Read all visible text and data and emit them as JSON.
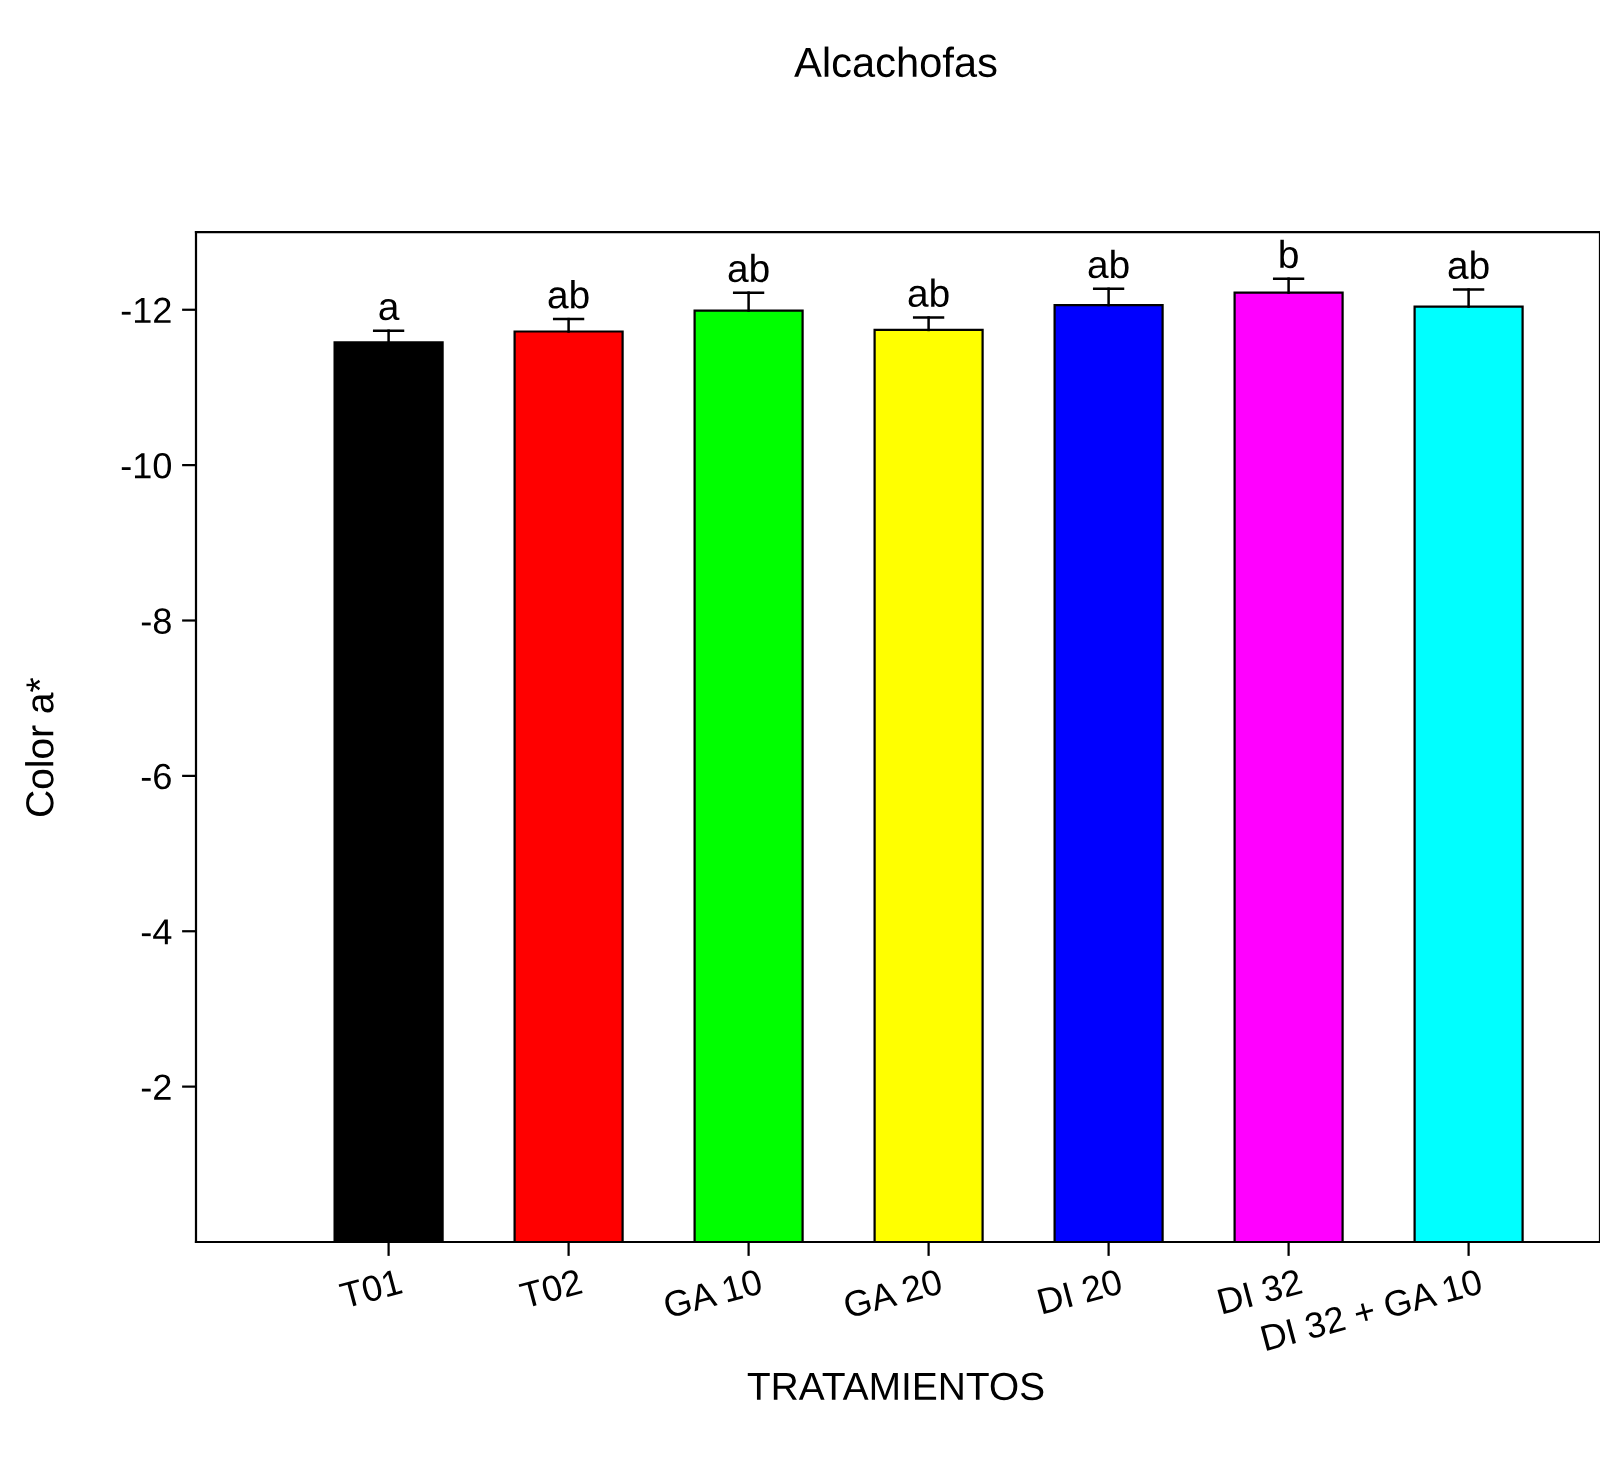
{
  "chart_data": {
    "type": "bar",
    "title": "Alcachofas",
    "xlabel": "TRATAMIENTOS",
    "ylabel": "Color a*",
    "categories": [
      "T01",
      "T02",
      "GA 10",
      "GA 20",
      "DI 20",
      "DI 32",
      "DI 32 + GA 10"
    ],
    "values": [
      -11.58,
      -11.72,
      -11.99,
      -11.74,
      -12.06,
      -12.22,
      -12.04
    ],
    "errors": [
      [
        -11.73,
        -11.58
      ],
      [
        -11.88,
        -11.72
      ],
      [
        -12.22,
        -11.99
      ],
      [
        -11.9,
        -11.74
      ],
      [
        -12.27,
        -12.06
      ],
      [
        -12.4,
        -12.22
      ],
      [
        -12.26,
        -12.04
      ]
    ],
    "colors": [
      "#000000",
      "#ff0000",
      "#00ff00",
      "#ffff00",
      "#0000ff",
      "#ff00ff",
      "#00ffff"
    ],
    "ylim": [
      0,
      -13
    ],
    "yticks": [
      -2,
      -4,
      -6,
      -8,
      -10,
      -12
    ],
    "grid": false,
    "annotations": [
      {
        "text": "a",
        "x": "T01",
        "y": -11.73
      },
      {
        "text": "ab",
        "x": "T02",
        "y": -11.88
      },
      {
        "text": "ab",
        "x": "GA 10",
        "y": -12.22
      },
      {
        "text": "ab",
        "x": "GA 20",
        "y": -11.9
      },
      {
        "text": "ab",
        "x": "DI 20",
        "y": -12.27
      },
      {
        "text": "b",
        "x": "DI 32",
        "y": -12.4
      },
      {
        "text": "ab",
        "x": "DI 32 + GA 10",
        "y": -12.26
      }
    ]
  }
}
